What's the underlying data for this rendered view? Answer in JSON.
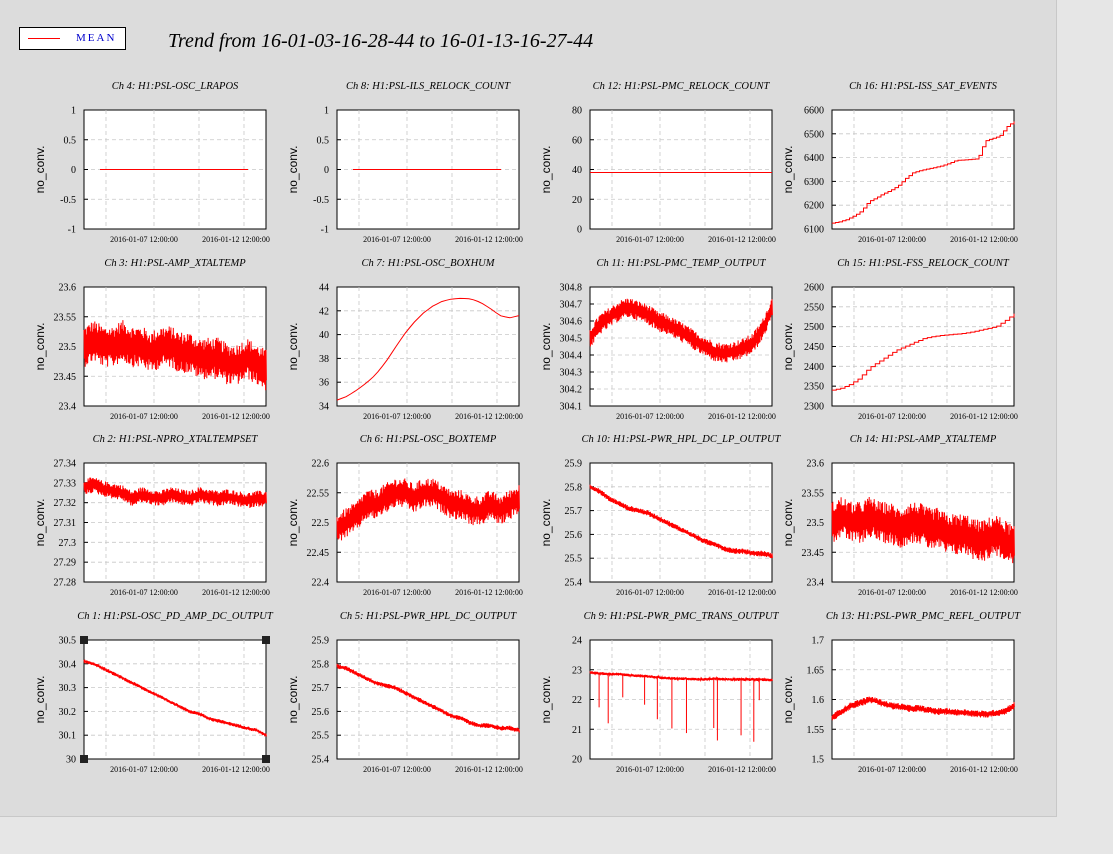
{
  "legend": {
    "label": "MEAN",
    "color": "#ff0000"
  },
  "title": "Trend from 16-01-03-16-28-44 to 16-01-13-16-27-44",
  "chart_data": [
    {
      "type": "line",
      "title": "Ch 4: H1:PSL-OSC_LRAPOS",
      "ylabel": "no_conv.",
      "ylim": [
        -1,
        1
      ],
      "yticks": [
        "1",
        "0.5",
        "0",
        "-0.5",
        "-1"
      ],
      "xticks": [
        "2016-01-07 12:00:00",
        "2016-01-12 12:00:00"
      ],
      "values": [
        0,
        0,
        0,
        0,
        0,
        0,
        0,
        0,
        0,
        0,
        0
      ],
      "grid": true,
      "series_color": "#ff0000"
    },
    {
      "type": "line",
      "title": "Ch 8: H1:PSL-ILS_RELOCK_COUNT",
      "ylabel": "no_conv.",
      "ylim": [
        -1,
        1
      ],
      "yticks": [
        "1",
        "0.5",
        "0",
        "-0.5",
        "-1"
      ],
      "xticks": [
        "2016-01-07 12:00:00",
        "2016-01-12 12:00:00"
      ],
      "values": [
        0,
        0,
        0,
        0,
        0,
        0,
        0,
        0,
        0,
        0,
        0
      ],
      "grid": true,
      "series_color": "#ff0000"
    },
    {
      "type": "line",
      "title": "Ch 12: H1:PSL-PMC_RELOCK_COUNT",
      "ylabel": "no_conv.",
      "ylim": [
        0,
        80
      ],
      "yticks": [
        "80",
        "60",
        "40",
        "20",
        "0"
      ],
      "xticks": [
        "2016-01-07 12:00:00",
        "2016-01-12 12:00:00"
      ],
      "values": [
        38,
        38,
        38,
        38,
        38,
        38,
        38,
        38,
        38,
        38,
        38,
        38,
        38,
        38,
        38,
        38
      ],
      "grid": true,
      "series_color": "#ff0000"
    },
    {
      "type": "line",
      "title": "Ch 16: H1:PSL-ISS_SAT_EVENTS",
      "ylabel": "no_conv.",
      "ylim": [
        6100,
        6600
      ],
      "yticks": [
        "6600",
        "6500",
        "6400",
        "6300",
        "6200",
        "6100"
      ],
      "xticks": [
        "2016-01-07 12:00:00",
        "2016-01-12 12:00:00"
      ],
      "values": [
        6125,
        6130,
        6140,
        6155,
        6175,
        6215,
        6230,
        6248,
        6262,
        6280,
        6310,
        6335,
        6345,
        6352,
        6358,
        6365,
        6375,
        6388,
        6390,
        6392,
        6395,
        6470,
        6480,
        6490,
        6530,
        6552
      ],
      "grid": true,
      "series_color": "#ff0000"
    },
    {
      "type": "line",
      "title": "Ch 3: H1:PSL-AMP_XTALTEMP",
      "ylabel": "no_conv.",
      "ylim": [
        23.4,
        23.6
      ],
      "yticks": [
        "23.6",
        "23.55",
        "23.5",
        "23.45",
        "23.4"
      ],
      "xticks": [
        "2016-01-07 12:00:00",
        "2016-01-12 12:00:00"
      ],
      "values": [
        23.5,
        23.51,
        23.5,
        23.5,
        23.51,
        23.5,
        23.5,
        23.49,
        23.5,
        23.5,
        23.49,
        23.49,
        23.48,
        23.48,
        23.48,
        23.47,
        23.47,
        23.48,
        23.47,
        23.46
      ],
      "noise": 0.035,
      "grid": true,
      "series_color": "#ff0000"
    },
    {
      "type": "line",
      "title": "Ch 7: H1:PSL-OSC_BOXHUM",
      "ylabel": "no_conv.",
      "ylim": [
        34,
        44
      ],
      "yticks": [
        "44",
        "42",
        "40",
        "38",
        "36",
        "34"
      ],
      "xticks": [
        "2016-01-07 12:00:00",
        "2016-01-12 12:00:00"
      ],
      "values": [
        34.5,
        34.8,
        35.3,
        35.9,
        36.6,
        37.6,
        38.8,
        40,
        41,
        41.8,
        42.4,
        42.8,
        43,
        43.05,
        43,
        42.7,
        42.2,
        41.6,
        41.4,
        41.6
      ],
      "grid": true,
      "series_color": "#ff0000"
    },
    {
      "type": "line",
      "title": "Ch 11: H1:PSL-PMC_TEMP_OUTPUT",
      "ylabel": "no_conv.",
      "ylim": [
        304.1,
        304.8
      ],
      "yticks": [
        "304.8",
        "304.7",
        "304.6",
        "304.5",
        "304.4",
        "304.3",
        "304.2",
        "304.1"
      ],
      "xticks": [
        "2016-01-07 12:00:00",
        "2016-01-12 12:00:00"
      ],
      "values": [
        304.5,
        304.58,
        304.62,
        304.66,
        304.68,
        304.66,
        304.64,
        304.6,
        304.58,
        304.55,
        304.52,
        304.48,
        304.45,
        304.42,
        304.41,
        304.42,
        304.44,
        304.47,
        304.55,
        304.68
      ],
      "noise": 0.06,
      "grid": true,
      "series_color": "#ff0000"
    },
    {
      "type": "line",
      "title": "Ch 15: H1:PSL-FSS_RELOCK_COUNT",
      "ylabel": "no_conv.",
      "ylim": [
        2300,
        2600
      ],
      "yticks": [
        "2600",
        "2550",
        "2500",
        "2450",
        "2400",
        "2350",
        "2300"
      ],
      "xticks": [
        "2016-01-07 12:00:00",
        "2016-01-12 12:00:00"
      ],
      "values": [
        2340,
        2345,
        2355,
        2370,
        2395,
        2410,
        2425,
        2440,
        2450,
        2460,
        2470,
        2475,
        2478,
        2480,
        2482,
        2485,
        2490,
        2495,
        2500,
        2515,
        2533
      ],
      "grid": true,
      "series_color": "#ff0000"
    },
    {
      "type": "line",
      "title": "Ch 2: H1:PSL-NPRO_XTALTEMPSET",
      "ylabel": "no_conv.",
      "ylim": [
        27.28,
        27.34
      ],
      "yticks": [
        "27.34",
        "27.33",
        "27.32",
        "27.31",
        "27.3",
        "27.29",
        "27.28"
      ],
      "xticks": [
        "2016-01-07 12:00:00",
        "2016-01-12 12:00:00"
      ],
      "values": [
        27.328,
        27.329,
        27.327,
        27.326,
        27.325,
        27.322,
        27.324,
        27.323,
        27.322,
        27.324,
        27.323,
        27.322,
        27.324,
        27.323,
        27.322,
        27.323,
        27.322,
        27.321,
        27.322,
        27.322
      ],
      "noise": 0.004,
      "grid": true,
      "series_color": "#ff0000"
    },
    {
      "type": "line",
      "title": "Ch 6: H1:PSL-OSC_BOXTEMP",
      "ylabel": "no_conv.",
      "ylim": [
        22.4,
        22.6
      ],
      "yticks": [
        "22.6",
        "22.55",
        "22.5",
        "22.45",
        "22.4"
      ],
      "xticks": [
        "2016-01-07 12:00:00",
        "2016-01-12 12:00:00"
      ],
      "values": [
        22.49,
        22.5,
        22.51,
        22.53,
        22.53,
        22.54,
        22.55,
        22.55,
        22.54,
        22.55,
        22.55,
        22.54,
        22.53,
        22.53,
        22.52,
        22.52,
        22.53,
        22.52,
        22.53,
        22.54
      ],
      "noise": 0.025,
      "grid": true,
      "series_color": "#ff0000"
    },
    {
      "type": "line",
      "title": "Ch 10: H1:PSL-PWR_HPL_DC_LP_OUTPUT",
      "ylabel": "no_conv.",
      "ylim": [
        25.4,
        25.9
      ],
      "yticks": [
        "25.9",
        "25.8",
        "25.7",
        "25.6",
        "25.5",
        "25.4"
      ],
      "xticks": [
        "2016-01-07 12:00:00",
        "2016-01-12 12:00:00"
      ],
      "values": [
        25.8,
        25.78,
        25.75,
        25.73,
        25.71,
        25.7,
        25.69,
        25.67,
        25.65,
        25.63,
        25.61,
        25.59,
        25.57,
        25.56,
        25.54,
        25.53,
        25.53,
        25.52,
        25.52,
        25.51
      ],
      "noise": 0.012,
      "grid": true,
      "series_color": "#ff0000"
    },
    {
      "type": "line",
      "title": "Ch 14: H1:PSL-AMP_XTALTEMP",
      "ylabel": "no_conv.",
      "ylim": [
        23.4,
        23.6
      ],
      "yticks": [
        "23.6",
        "23.55",
        "23.5",
        "23.45",
        "23.4"
      ],
      "xticks": [
        "2016-01-07 12:00:00",
        "2016-01-12 12:00:00"
      ],
      "values": [
        23.5,
        23.51,
        23.5,
        23.5,
        23.51,
        23.5,
        23.5,
        23.49,
        23.5,
        23.5,
        23.49,
        23.49,
        23.48,
        23.48,
        23.48,
        23.47,
        23.47,
        23.48,
        23.47,
        23.46
      ],
      "noise": 0.035,
      "grid": true,
      "series_color": "#ff0000"
    },
    {
      "type": "line",
      "title": "Ch 1: H1:PSL-OSC_PD_AMP_DC_OUTPUT",
      "ylabel": "no_conv.",
      "ylim": [
        30,
        30.5
      ],
      "yticks": [
        "30.5",
        "30.4",
        "30.3",
        "30.2",
        "30.1",
        "30"
      ],
      "xticks": [
        "2016-01-07 12:00:00",
        "2016-01-12 12:00:00"
      ],
      "values": [
        30.41,
        30.4,
        30.38,
        30.36,
        30.34,
        30.32,
        30.3,
        30.28,
        30.26,
        30.24,
        30.22,
        30.2,
        30.19,
        30.17,
        30.16,
        30.15,
        30.14,
        30.13,
        30.12,
        30.1
      ],
      "noise": 0.008,
      "grid": true,
      "selected": true,
      "series_color": "#ff0000"
    },
    {
      "type": "line",
      "title": "Ch 5: H1:PSL-PWR_HPL_DC_OUTPUT",
      "ylabel": "no_conv.",
      "ylim": [
        25.4,
        25.9
      ],
      "yticks": [
        "25.9",
        "25.8",
        "25.7",
        "25.6",
        "25.5",
        "25.4"
      ],
      "xticks": [
        "2016-01-07 12:00:00",
        "2016-01-12 12:00:00"
      ],
      "values": [
        25.79,
        25.78,
        25.76,
        25.74,
        25.72,
        25.71,
        25.7,
        25.68,
        25.66,
        25.64,
        25.62,
        25.6,
        25.58,
        25.57,
        25.55,
        25.54,
        25.54,
        25.53,
        25.53,
        25.52
      ],
      "noise": 0.01,
      "grid": true,
      "series_color": "#ff0000"
    },
    {
      "type": "line",
      "title": "Ch 9: H1:PSL-PWR_PMC_TRANS_OUTPUT",
      "ylabel": "no_conv.",
      "ylim": [
        20,
        24
      ],
      "yticks": [
        "24",
        "23",
        "22",
        "21",
        "20"
      ],
      "xticks": [
        "2016-01-07 12:00:00",
        "2016-01-12 12:00:00"
      ],
      "values": [
        22.9,
        22.88,
        22.85,
        22.85,
        22.82,
        22.8,
        22.78,
        22.75,
        22.72,
        22.7,
        22.7,
        22.68,
        22.68,
        22.7,
        22.68,
        22.68,
        22.67,
        22.67,
        22.67,
        22.65
      ],
      "noise": 0.05,
      "dips": true,
      "grid": true,
      "series_color": "#ff0000"
    },
    {
      "type": "line",
      "title": "Ch 13: H1:PSL-PWR_PMC_REFL_OUTPUT",
      "ylabel": "no_conv.",
      "ylim": [
        1.5,
        1.7
      ],
      "yticks": [
        "1.7",
        "1.65",
        "1.6",
        "1.55",
        "1.5"
      ],
      "xticks": [
        "2016-01-07 12:00:00",
        "2016-01-12 12:00:00"
      ],
      "values": [
        1.57,
        1.58,
        1.59,
        1.595,
        1.6,
        1.595,
        1.59,
        1.588,
        1.585,
        1.585,
        1.582,
        1.58,
        1.58,
        1.578,
        1.578,
        1.576,
        1.575,
        1.577,
        1.58,
        1.59
      ],
      "noise": 0.006,
      "grid": true,
      "series_color": "#ff0000"
    }
  ]
}
